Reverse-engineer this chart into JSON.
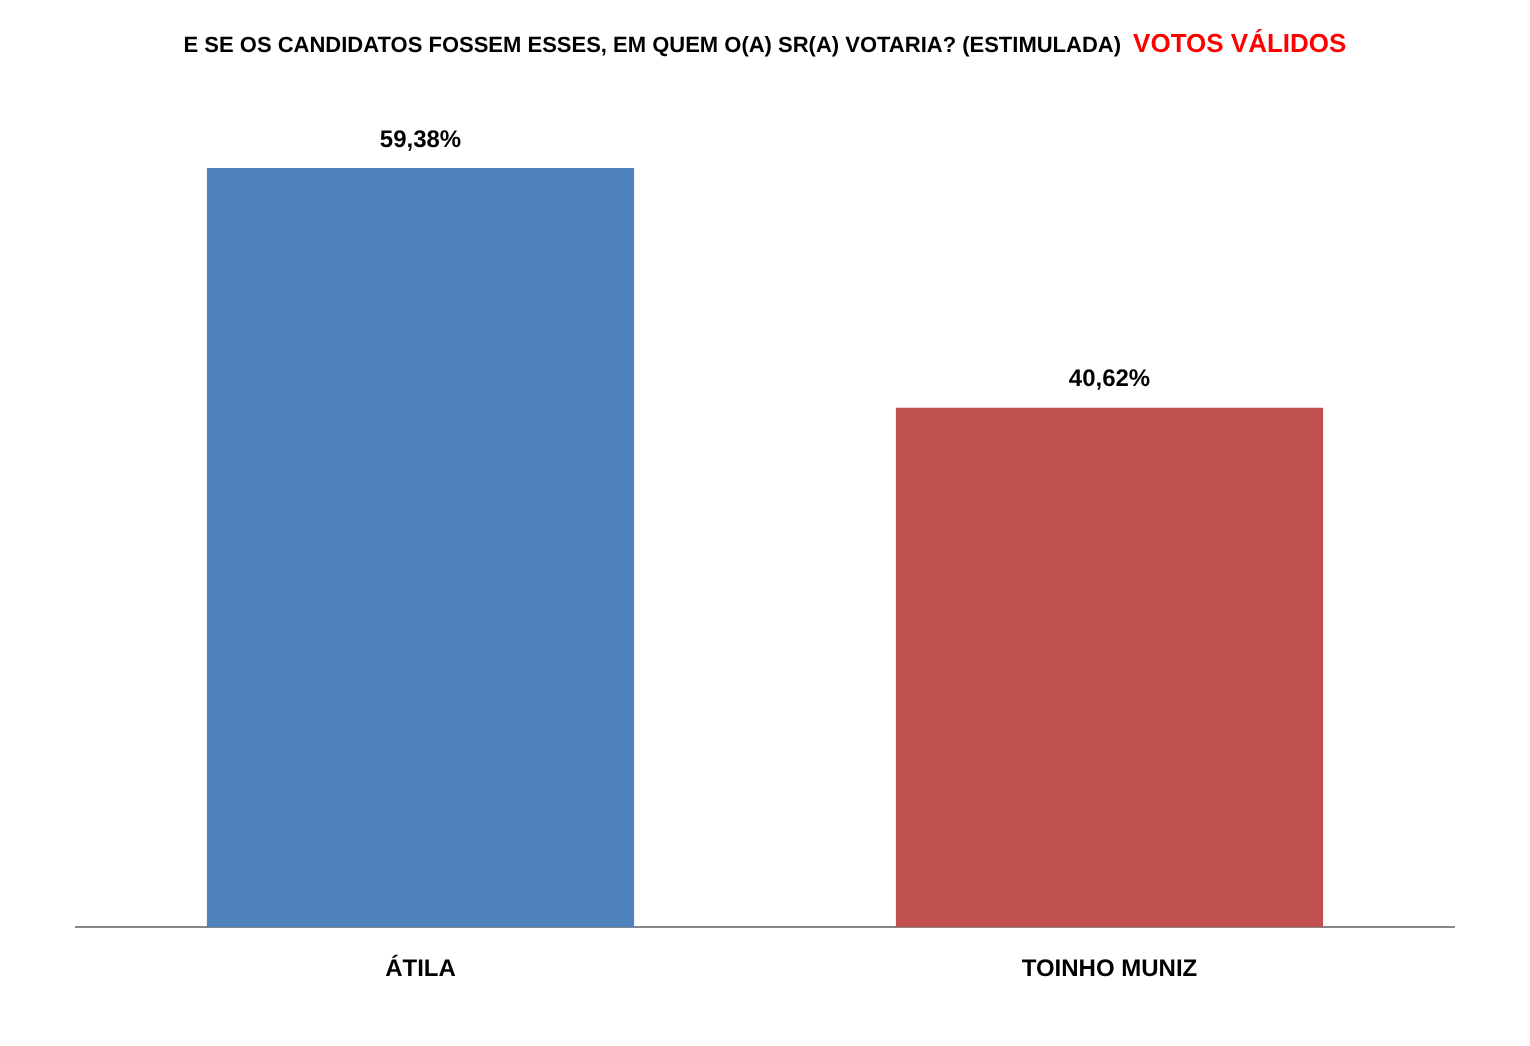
{
  "chart_data": {
    "type": "bar",
    "title": "E SE OS CANDIDATOS FOSSEM ESSES, EM QUEM O(A) SR(A) VOTARIA? (ESTIMULADA)",
    "subtitle": "VOTOS VÁLIDOS",
    "categories": [
      "ÁTILA",
      "TOINHO MUNIZ"
    ],
    "values": [
      59.38,
      40.62
    ],
    "colors": [
      "#4f81bd",
      "#c0504d"
    ],
    "value_labels": [
      "59,38%",
      "40,62%"
    ],
    "grid": false,
    "legend": false
  }
}
